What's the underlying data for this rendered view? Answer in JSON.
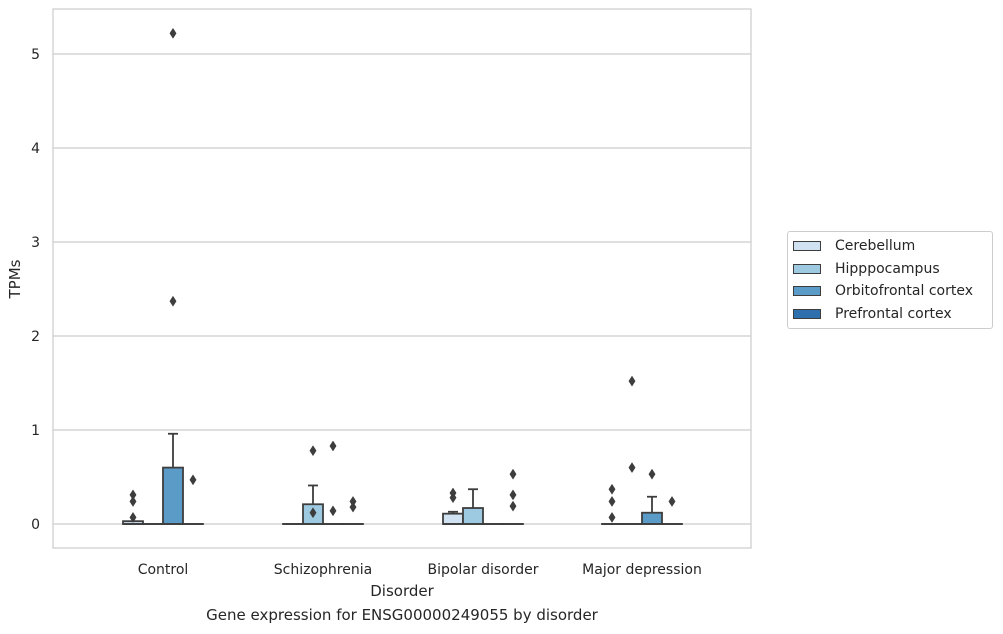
{
  "chart_data": {
    "type": "box",
    "xlabel": "Disorder",
    "ylabel": "TPMs",
    "caption": "Gene expression for ENSG00000249055 by disorder",
    "categories": [
      "Control",
      "Schizophrenia",
      "Bipolar disorder",
      "Major depression"
    ],
    "yticks": [
      0,
      1,
      2,
      3,
      4,
      5
    ],
    "ylim": [
      -0.26,
      5.5
    ],
    "grid": "y",
    "legend_position": "center-right",
    "series": [
      {
        "name": "Cerebellum",
        "color": "#d0e1f2",
        "boxes": [
          {
            "q1": 0.0,
            "median": 0.0,
            "q3": 0.03,
            "whisker_low": 0.0,
            "whisker_high": 0.03,
            "outliers": [
              0.07,
              0.24,
              0.31
            ]
          },
          {
            "q1": 0.0,
            "median": 0.0,
            "q3": 0.0,
            "whisker_low": 0.0,
            "whisker_high": 0.0,
            "outliers": []
          },
          {
            "q1": 0.0,
            "median": 0.0,
            "q3": 0.11,
            "whisker_low": 0.0,
            "whisker_high": 0.13,
            "outliers": [
              0.28,
              0.33
            ]
          },
          {
            "q1": 0.0,
            "median": 0.0,
            "q3": 0.0,
            "whisker_low": 0.0,
            "whisker_high": 0.0,
            "outliers": [
              0.07,
              0.24,
              0.37
            ]
          }
        ]
      },
      {
        "name": "Hipppocampus",
        "color": "#9ecae1",
        "boxes": [
          {
            "q1": 0.0,
            "median": 0.0,
            "q3": 0.0,
            "whisker_low": 0.0,
            "whisker_high": 0.0,
            "outliers": []
          },
          {
            "q1": 0.0,
            "median": 0.0,
            "q3": 0.21,
            "whisker_low": 0.0,
            "whisker_high": 0.41,
            "outliers": [
              0.12,
              0.78
            ]
          },
          {
            "q1": 0.0,
            "median": 0.0,
            "q3": 0.17,
            "whisker_low": 0.0,
            "whisker_high": 0.37,
            "outliers": []
          },
          {
            "q1": 0.0,
            "median": 0.0,
            "q3": 0.0,
            "whisker_low": 0.0,
            "whisker_high": 0.0,
            "outliers": [
              0.6,
              1.52
            ]
          }
        ]
      },
      {
        "name": "Orbitofrontal cortex",
        "color": "#5b9bc8",
        "boxes": [
          {
            "q1": 0.0,
            "median": 0.0,
            "q3": 0.6,
            "whisker_low": 0.0,
            "whisker_high": 0.96,
            "outliers": [
              2.37,
              5.22
            ]
          },
          {
            "q1": 0.0,
            "median": 0.0,
            "q3": 0.0,
            "whisker_low": 0.0,
            "whisker_high": 0.0,
            "outliers": [
              0.14,
              0.83
            ]
          },
          {
            "q1": 0.0,
            "median": 0.0,
            "q3": 0.0,
            "whisker_low": 0.0,
            "whisker_high": 0.0,
            "outliers": []
          },
          {
            "q1": 0.0,
            "median": 0.0,
            "q3": 0.12,
            "whisker_low": 0.0,
            "whisker_high": 0.29,
            "outliers": [
              0.53
            ]
          }
        ]
      },
      {
        "name": "Prefrontal cortex",
        "color": "#2e6fae",
        "boxes": [
          {
            "q1": 0.0,
            "median": 0.0,
            "q3": 0.0,
            "whisker_low": 0.0,
            "whisker_high": 0.0,
            "outliers": [
              0.47
            ]
          },
          {
            "q1": 0.0,
            "median": 0.0,
            "q3": 0.0,
            "whisker_low": 0.0,
            "whisker_high": 0.0,
            "outliers": [
              0.18,
              0.24
            ]
          },
          {
            "q1": 0.0,
            "median": 0.0,
            "q3": 0.0,
            "whisker_low": 0.0,
            "whisker_high": 0.0,
            "outliers": [
              0.19,
              0.31,
              0.53
            ]
          },
          {
            "q1": 0.0,
            "median": 0.0,
            "q3": 0.0,
            "whisker_low": 0.0,
            "whisker_high": 0.0,
            "outliers": [
              0.24
            ]
          }
        ]
      }
    ]
  }
}
